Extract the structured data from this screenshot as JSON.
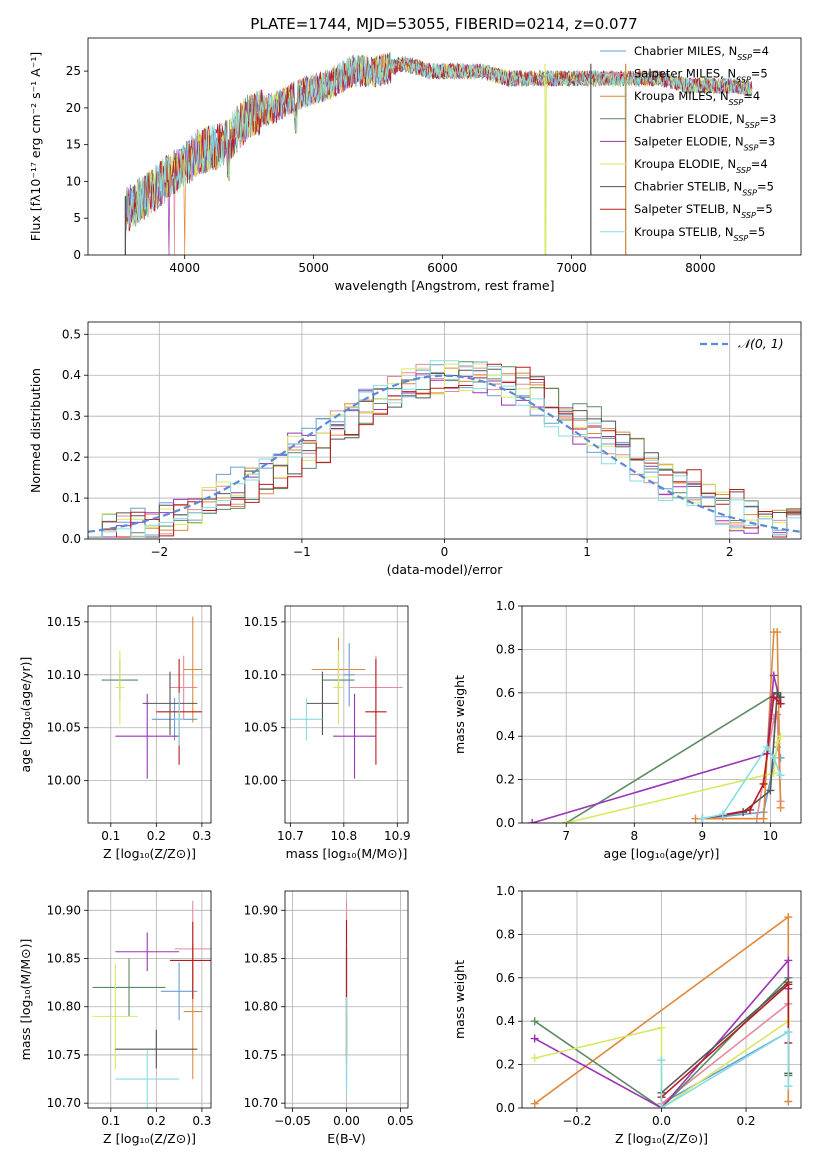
{
  "figure_title": "PLATE=1744, MJD=53055, FIBERID=0214, z=0.077",
  "series_colors": [
    "#6c9ed5",
    "#e58a9b",
    "#df8a3a",
    "#5c8a62",
    "#9b35b5",
    "#d8e864",
    "#555555",
    "#b81d1d",
    "#86dde3"
  ],
  "chart_data": [
    {
      "id": "spectrum",
      "type": "line",
      "title": "PLATE=1744, MJD=53055, FIBERID=0214, z=0.077",
      "xlabel": "wavelength [Angstrom, rest frame]",
      "ylabel": "Flux [fλ10⁻¹⁷ erg cm⁻² s⁻¹ A⁻¹]",
      "xlim": [
        3250,
        8780
      ],
      "ylim": [
        0,
        29.5
      ],
      "xticks": [
        4000,
        5000,
        6000,
        7000,
        8000
      ],
      "yticks": [
        0,
        5,
        10,
        15,
        20,
        25
      ],
      "grid": false,
      "legend_position": "upper-right",
      "spectrum_anchors": {
        "x": [
          3540,
          3700,
          3900,
          4000,
          4100,
          4300,
          4500,
          4700,
          4900,
          5100,
          5300,
          5500,
          5700,
          5900,
          6100,
          6300,
          6500,
          6700,
          6900,
          7100,
          7300,
          7500,
          7700,
          7900,
          8100,
          8300,
          8500
        ],
        "y": [
          6,
          8,
          11,
          12,
          14,
          15,
          19,
          20,
          22,
          23,
          25,
          25,
          26,
          25,
          25,
          25,
          24,
          24,
          24,
          24,
          24,
          24,
          24,
          23,
          23,
          23,
          22
        ]
      },
      "legend": [
        {
          "label": "Chabrier MILES, N",
          "sub": "SSP",
          "tail": "=4"
        },
        {
          "label": "Salpeter MILES, N",
          "sub": "SSP",
          "tail": "=5"
        },
        {
          "label": "Kroupa MILES, N",
          "sub": "SSP",
          "tail": "=4"
        },
        {
          "label": "Chabrier ELODIE, N",
          "sub": "SSP",
          "tail": "=3"
        },
        {
          "label": "Salpeter ELODIE, N",
          "sub": "SSP",
          "tail": "=3"
        },
        {
          "label": "Kroupa ELODIE, N",
          "sub": "SSP",
          "tail": "=4"
        },
        {
          "label": "Chabrier STELIB, N",
          "sub": "SSP",
          "tail": "=5"
        },
        {
          "label": "Salpeter STELIB, N",
          "sub": "SSP",
          "tail": "=5"
        },
        {
          "label": "Kroupa STELIB, N",
          "sub": "SSP",
          "tail": "=5"
        }
      ]
    },
    {
      "id": "residuals",
      "type": "line",
      "xlabel": "(data-model)/error",
      "ylabel": "Normed distribution",
      "xlim": [
        -2.5,
        2.5
      ],
      "ylim": [
        0,
        0.53
      ],
      "xticks": [
        -2,
        -1,
        0,
        1,
        2
      ],
      "yticks": [
        0.0,
        0.1,
        0.2,
        0.3,
        0.4,
        0.5
      ],
      "grid": true,
      "legend_position": "upper-right",
      "legend": [
        {
          "label": "𝒩(0, 1)"
        }
      ],
      "bin_width": 0.1
    },
    {
      "id": "age-vs-Z",
      "type": "scatter",
      "xlabel": "Z [log₁₀(Z/Z⊙)]",
      "ylabel": "age  [log₁₀(age/yr)]",
      "xlim": [
        0.05,
        0.32
      ],
      "ylim": [
        9.96,
        10.165
      ],
      "xticks": [
        0.1,
        0.2,
        0.3
      ],
      "yticks": [
        10.0,
        10.05,
        10.1,
        10.15
      ],
      "grid": true,
      "points": [
        {
          "x": 0.24,
          "y": 10.058,
          "xerr": 0.05,
          "yerr": 0.02
        },
        {
          "x": 0.26,
          "y": 10.088,
          "xerr": 0.03,
          "yerr": 0.03
        },
        {
          "x": 0.28,
          "y": 10.105,
          "xerr": 0.02,
          "yerr": 0.05
        },
        {
          "x": 0.12,
          "y": 10.095,
          "xerr": 0.04,
          "yerr": 0.02
        },
        {
          "x": 0.18,
          "y": 10.042,
          "xerr": 0.07,
          "yerr": 0.04
        },
        {
          "x": 0.12,
          "y": 10.088,
          "xerr": 0.01,
          "yerr": 0.035
        },
        {
          "x": 0.23,
          "y": 10.073,
          "xerr": 0.06,
          "yerr": 0.03
        },
        {
          "x": 0.25,
          "y": 10.065,
          "xerr": 0.05,
          "yerr": 0.05
        },
        {
          "x": 0.25,
          "y": 10.058,
          "xerr": 0.01,
          "yerr": 0.025
        }
      ]
    },
    {
      "id": "age-vs-mass",
      "type": "scatter",
      "xlabel": "mass [log₁₀(M/M⊙)]",
      "xlim": [
        10.69,
        10.92
      ],
      "ylim": [
        9.96,
        10.165
      ],
      "xticks": [
        10.7,
        10.8,
        10.9
      ],
      "yticks": [
        10.0,
        10.05,
        10.1,
        10.15
      ],
      "grid": true,
      "points": [
        {
          "x": 10.81,
          "y": 10.1,
          "xerr": 0.01,
          "yerr": 0.03
        },
        {
          "x": 10.86,
          "y": 10.088,
          "xerr": 0.05,
          "yerr": 0.03
        },
        {
          "x": 10.79,
          "y": 10.105,
          "xerr": 0.05,
          "yerr": 0.03
        },
        {
          "x": 10.79,
          "y": 10.095,
          "xerr": 0.03,
          "yerr": 0.02
        },
        {
          "x": 10.82,
          "y": 10.042,
          "xerr": 0.04,
          "yerr": 0.04
        },
        {
          "x": 10.79,
          "y": 10.088,
          "xerr": 0.01,
          "yerr": 0.035
        },
        {
          "x": 10.76,
          "y": 10.073,
          "xerr": 0.03,
          "yerr": 0.03
        },
        {
          "x": 10.86,
          "y": 10.065,
          "xerr": 0.02,
          "yerr": 0.05
        },
        {
          "x": 10.73,
          "y": 10.058,
          "xerr": 0.03,
          "yerr": 0.02
        }
      ]
    },
    {
      "id": "mass-weight-vs-age",
      "type": "line",
      "xlabel": "age  [log₁₀(age/yr)]",
      "ylabel": "mass weight",
      "xlim": [
        6.35,
        10.45
      ],
      "ylim": [
        0,
        1.0
      ],
      "xticks": [
        7,
        8,
        9,
        10
      ],
      "yticks": [
        0.0,
        0.2,
        0.4,
        0.6,
        0.8,
        1.0
      ],
      "grid": true,
      "series": [
        {
          "x": [
            9.0,
            9.3,
            9.9,
            10.1,
            10.15
          ],
          "y": [
            0.02,
            0.03,
            0.05,
            0.35,
            0.3
          ]
        },
        {
          "x": [
            9.0,
            9.8,
            10.05,
            10.1,
            10.15
          ],
          "y": [
            0.02,
            0.02,
            0.48,
            0.5,
            0.1
          ]
        },
        {
          "x": [
            8.9,
            9.9,
            10.05,
            10.1,
            10.15
          ],
          "y": [
            0.02,
            0.02,
            0.88,
            0.88,
            0.07
          ]
        },
        {
          "x": [
            7.0,
            10.1,
            10.15
          ],
          "y": [
            0.0,
            0.6,
            0.58
          ]
        },
        {
          "x": [
            6.5,
            9.95,
            10.05,
            10.15
          ],
          "y": [
            0.0,
            0.32,
            0.68,
            0.55
          ]
        },
        {
          "x": [
            7.0,
            10.05,
            10.1,
            10.15
          ],
          "y": [
            0.0,
            0.23,
            0.37,
            0.4
          ]
        },
        {
          "x": [
            9.0,
            9.6,
            10.0,
            10.1,
            10.15
          ],
          "y": [
            0.02,
            0.05,
            0.15,
            0.6,
            0.58
          ]
        },
        {
          "x": [
            9.0,
            9.7,
            9.9,
            10.05,
            10.15
          ],
          "y": [
            0.02,
            0.06,
            0.18,
            0.58,
            0.55
          ]
        },
        {
          "x": [
            9.0,
            9.3,
            9.95,
            10.05,
            10.15
          ],
          "y": [
            0.02,
            0.04,
            0.35,
            0.3,
            0.22
          ]
        }
      ]
    },
    {
      "id": "mass-vs-Z",
      "type": "scatter",
      "xlabel": "Z [log₁₀(Z/Z⊙)]",
      "ylabel": "mass [log₁₀(M/M⊙)]",
      "xlim": [
        0.05,
        0.32
      ],
      "ylim": [
        10.695,
        10.92
      ],
      "xticks": [
        0.1,
        0.2,
        0.3
      ],
      "yticks": [
        10.7,
        10.75,
        10.8,
        10.85,
        10.9
      ],
      "grid": true,
      "points": [
        {
          "x": 0.25,
          "y": 10.816,
          "xerr": 0.04,
          "yerr": 0.03
        },
        {
          "x": 0.28,
          "y": 10.86,
          "xerr": 0.04,
          "yerr": 0.05
        },
        {
          "x": 0.28,
          "y": 10.795,
          "xerr": 0.02,
          "yerr": 0.07
        },
        {
          "x": 0.14,
          "y": 10.82,
          "xerr": 0.08,
          "yerr": 0.03
        },
        {
          "x": 0.18,
          "y": 10.857,
          "xerr": 0.07,
          "yerr": 0.02
        },
        {
          "x": 0.11,
          "y": 10.79,
          "xerr": 0.05,
          "yerr": 0.055
        },
        {
          "x": 0.2,
          "y": 10.756,
          "xerr": 0.09,
          "yerr": 0.02
        },
        {
          "x": 0.28,
          "y": 10.848,
          "xerr": 0.05,
          "yerr": 0.04
        },
        {
          "x": 0.18,
          "y": 10.725,
          "xerr": 0.07,
          "yerr": 0.03
        }
      ]
    },
    {
      "id": "mass-vs-EBV",
      "type": "scatter",
      "xlabel": "E(B-V)",
      "xlim": [
        -0.057,
        0.057
      ],
      "ylim": [
        10.695,
        10.92
      ],
      "xticks": [
        -0.05,
        0.0,
        0.05
      ],
      "xtick_labels": [
        "−0.05",
        "0.00",
        "0.05"
      ],
      "yticks": [
        10.7,
        10.75,
        10.8,
        10.85,
        10.9
      ],
      "grid": true,
      "points": [
        {
          "x": 0.0,
          "y": 10.8,
          "xerr": 0.0,
          "yerr": 0.09
        },
        {
          "x": 0.0,
          "y": 10.86,
          "xerr": 0.0,
          "yerr": 0.05
        },
        {
          "x": 0.0,
          "y": 10.8,
          "xerr": 0.0,
          "yerr": 0.06
        },
        {
          "x": 0.0,
          "y": 10.8,
          "xerr": 0.0,
          "yerr": 0.05
        },
        {
          "x": 0.0,
          "y": 10.8,
          "xerr": 0.0,
          "yerr": 0.06
        },
        {
          "x": 0.0,
          "y": 10.78,
          "xerr": 0.0,
          "yerr": 0.04
        },
        {
          "x": 0.0,
          "y": 10.76,
          "xerr": 0.0,
          "yerr": 0.035
        },
        {
          "x": 0.0,
          "y": 10.82,
          "xerr": 0.0,
          "yerr": 0.07
        },
        {
          "x": 0.0,
          "y": 10.76,
          "xerr": 0.0,
          "yerr": 0.05
        }
      ]
    },
    {
      "id": "mass-weight-vs-Z",
      "type": "line",
      "xlabel": "Z [log₁₀(Z/Z⊙)]",
      "ylabel": "mass weight",
      "xlim": [
        -0.33,
        0.33
      ],
      "ylim": [
        0,
        1.0
      ],
      "xticks": [
        -0.2,
        0.0,
        0.2
      ],
      "xtick_labels": [
        "−0.2",
        "0.0",
        "0.2"
      ],
      "yticks": [
        0.0,
        0.2,
        0.4,
        0.6,
        0.8,
        1.0
      ],
      "grid": true,
      "series": [
        {
          "x": [
            0.0,
            0.3,
            0.3
          ],
          "y": [
            0.02,
            0.35,
            0.1
          ]
        },
        {
          "x": [
            0.0,
            0.3,
            0.3
          ],
          "y": [
            0.02,
            0.48,
            0.15
          ]
        },
        {
          "x": [
            -0.3,
            0.3,
            0.3
          ],
          "y": [
            0.02,
            0.88,
            0.03
          ]
        },
        {
          "x": [
            -0.3,
            0.0,
            0.3,
            0.3
          ],
          "y": [
            0.4,
            0.0,
            0.6,
            0.15
          ]
        },
        {
          "x": [
            -0.3,
            0.0,
            0.3,
            0.3
          ],
          "y": [
            0.32,
            0.0,
            0.68,
            0.55
          ]
        },
        {
          "x": [
            -0.3,
            0.0,
            0.0,
            0.3
          ],
          "y": [
            0.23,
            0.37,
            0.0,
            0.4
          ]
        },
        {
          "x": [
            0.0,
            0.3,
            0.3
          ],
          "y": [
            0.07,
            0.58,
            0.16
          ]
        },
        {
          "x": [
            0.0,
            0.3,
            0.3
          ],
          "y": [
            0.05,
            0.57,
            0.3
          ]
        },
        {
          "x": [
            0.0,
            0.0,
            0.3,
            0.3
          ],
          "y": [
            0.22,
            0.0,
            0.35,
            0.1
          ]
        }
      ]
    }
  ]
}
